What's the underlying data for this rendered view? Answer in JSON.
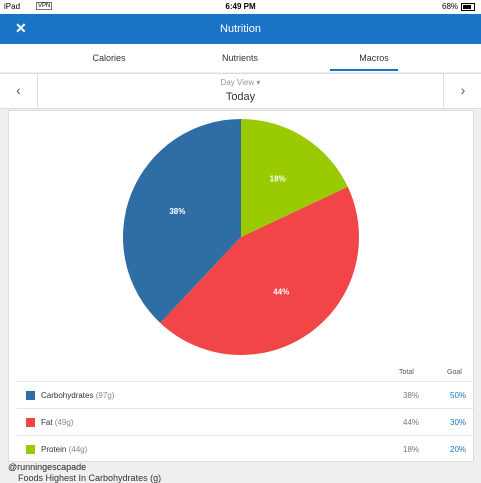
{
  "status_bar": {
    "device": "iPad",
    "vpn": "VPN",
    "time": "6:49 PM",
    "battery": "68%"
  },
  "header": {
    "title": "Nutrition"
  },
  "tabs": [
    "Calories",
    "Nutrients",
    "Macros"
  ],
  "day_view": {
    "label": "Day View",
    "date": "Today"
  },
  "chart_data": {
    "type": "pie",
    "categories": [
      "Carbohydrates",
      "Fat",
      "Protein"
    ],
    "values": [
      38,
      44,
      18
    ],
    "value_labels": [
      "38%",
      "44%",
      "18%"
    ],
    "colors": [
      "#2f6ea5",
      "#f14547",
      "#99cb00"
    ]
  },
  "table": {
    "columns": [
      "Total",
      "Goal"
    ],
    "rows": [
      {
        "name": "Carbohydrates",
        "amount": "(97g)",
        "total": "38%",
        "goal": "50%"
      },
      {
        "name": "Fat",
        "amount": "(49g)",
        "total": "44%",
        "goal": "30%"
      },
      {
        "name": "Protein",
        "amount": "(44g)",
        "total": "18%",
        "goal": "20%"
      }
    ]
  },
  "watermark": "@runningescapade",
  "footer": "Foods Highest In Carbohydrates (g)"
}
